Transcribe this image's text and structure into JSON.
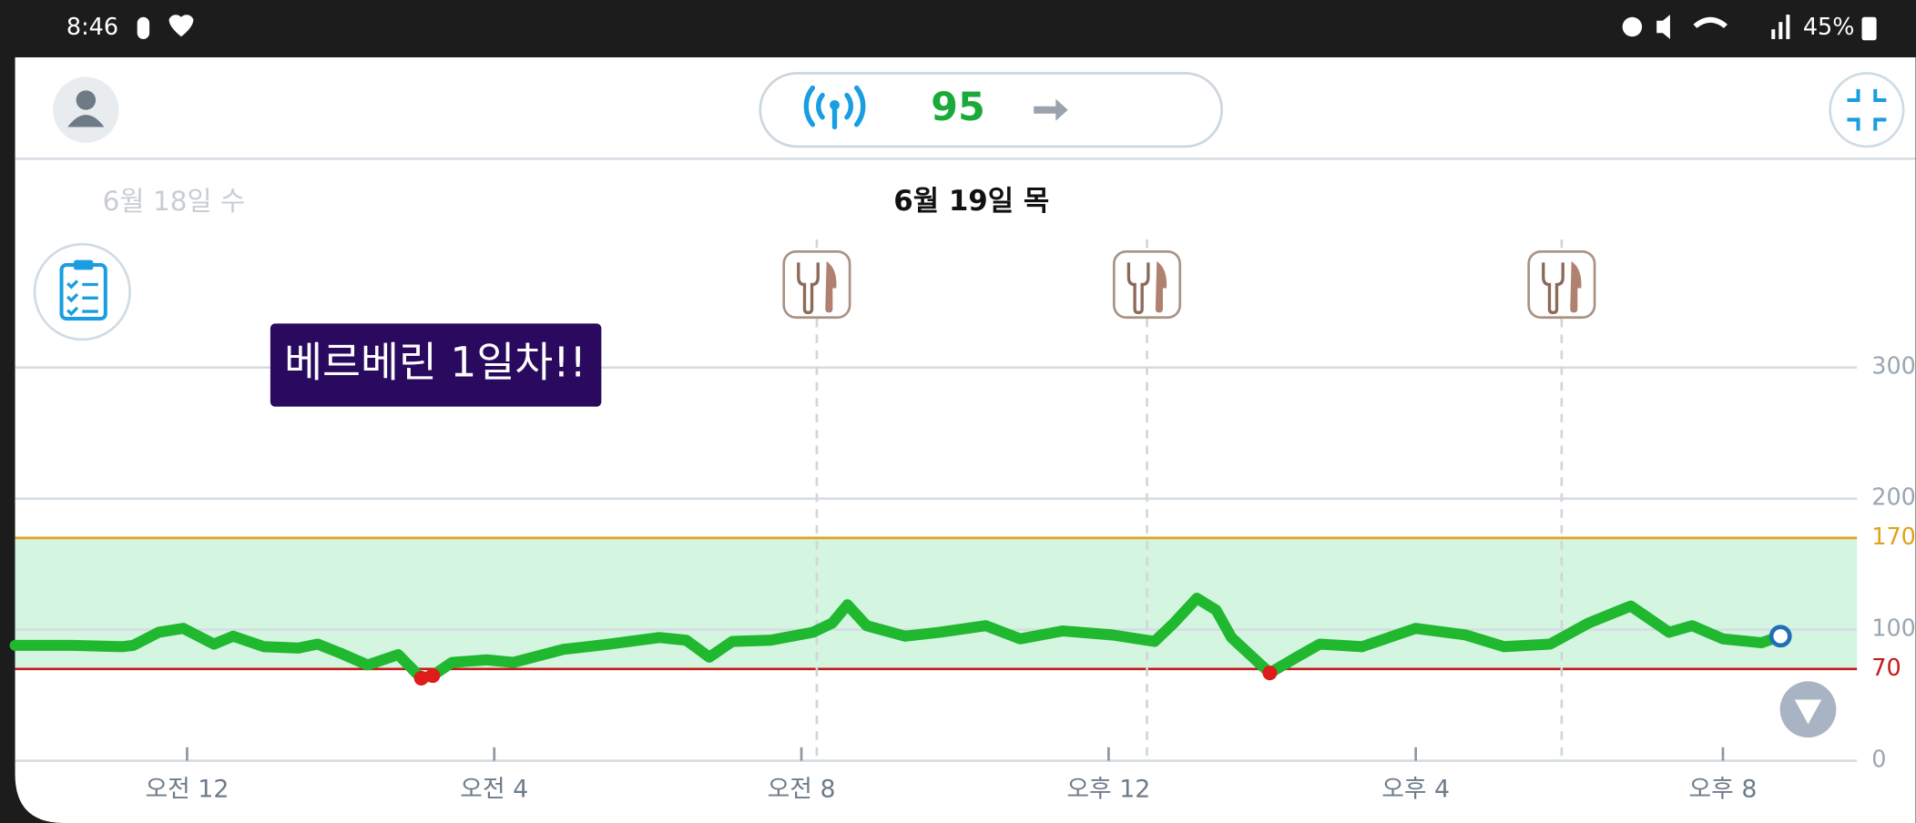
{
  "status_bar": {
    "time": "8:46",
    "battery": "45%"
  },
  "header": {
    "reading": 95
  },
  "dates": {
    "previous": "6월 18일 수",
    "current": "6월 19일 목"
  },
  "note": "베르베린 1일차!!",
  "chart_data": {
    "type": "line",
    "x": [
      -2.24,
      -1.5,
      -0.85,
      -0.7,
      -0.37,
      -0.05,
      0.35,
      0.6,
      1.0,
      1.45,
      1.7,
      2.0,
      2.35,
      2.75,
      3.05,
      3.2,
      3.45,
      3.9,
      4.25,
      4.9,
      5.5,
      6.15,
      6.5,
      6.8,
      7.1,
      7.6,
      8.15,
      8.4,
      8.6,
      8.85,
      9.35,
      9.8,
      10.4,
      10.85,
      11.4,
      12.05,
      12.6,
      12.85,
      13.15,
      13.4,
      13.6,
      13.95,
      14.1,
      14.45,
      14.75,
      15.3,
      16.0,
      16.65,
      17.15,
      17.75,
      18.25,
      18.8,
      19.3,
      19.6,
      20.0,
      20.5,
      20.75
    ],
    "values": [
      88,
      88,
      87,
      88,
      98,
      101,
      89,
      95,
      87,
      86,
      89,
      82,
      73,
      81,
      63,
      65,
      75,
      77,
      75,
      85,
      89,
      94,
      92,
      79,
      91,
      92,
      98,
      105,
      119,
      103,
      95,
      98,
      103,
      93,
      99,
      96,
      91,
      105,
      124,
      115,
      94,
      75,
      67,
      79,
      89,
      87,
      101,
      96,
      87,
      89,
      105,
      118,
      98,
      103,
      93,
      90,
      95
    ],
    "color": "#1fb82e",
    "low_color": "#e01b1b",
    "current_color": "#1f6fb5",
    "xlim": [
      -2.24,
      22
    ],
    "xticks": [
      {
        "value": 0,
        "label": "오전 12"
      },
      {
        "value": 4,
        "label": "오전 4"
      },
      {
        "value": 8,
        "label": "오전 8"
      },
      {
        "value": 12,
        "label": "오후 12"
      },
      {
        "value": 16,
        "label": "오후 4"
      },
      {
        "value": 20,
        "label": "오후 8"
      }
    ],
    "ylim": [
      0,
      300
    ],
    "yticks": [
      0,
      100,
      200,
      300
    ],
    "grid": true,
    "high_threshold": 170,
    "high_color": "#e0a21a",
    "low_threshold": 70,
    "low_line_color": "#c41a1a",
    "target_band_color": "#d4f5e0",
    "meals": [
      8.2,
      12.5,
      17.9
    ]
  }
}
